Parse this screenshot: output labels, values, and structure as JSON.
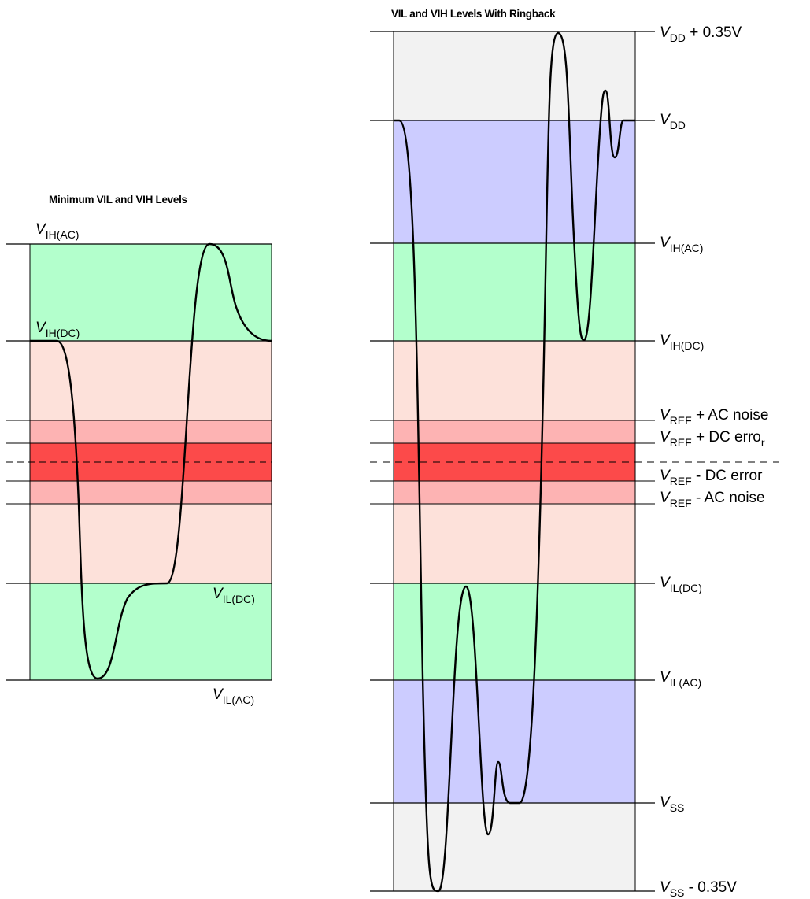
{
  "colors": {
    "green": "#b3ffcc",
    "pink": "#fde1da",
    "light_red": "#fdb3b3",
    "red": "#fc4a4a",
    "blue": "#ccccff",
    "gray": "#f2f2f2",
    "line": "#000000"
  },
  "left_panel": {
    "title": "Minimum VIL and VIH Levels",
    "labels": {
      "vih_ac": {
        "v": "V",
        "sub": "IH(AC)"
      },
      "vih_dc": {
        "v": "V",
        "sub": "IH(DC)"
      },
      "vil_dc": {
        "v": "V",
        "sub": "IL(DC)"
      },
      "vil_ac": {
        "v": "V",
        "sub": "IL(AC)"
      }
    }
  },
  "right_panel": {
    "title": "VIL and VIH Levels With Ringback",
    "labels": {
      "vdd_plus": {
        "v": "V",
        "sub": "DD",
        "rest": " + 0.35V"
      },
      "vdd": {
        "v": "V",
        "sub": "DD",
        "rest": ""
      },
      "vih_ac": {
        "v": "V",
        "sub": "IH(AC)",
        "rest": ""
      },
      "vih_dc": {
        "v": "V",
        "sub": "IH(DC)",
        "rest": ""
      },
      "vref_ac_plus": {
        "v": "V",
        "sub": "REF",
        "rest": " + AC noise"
      },
      "vref_dc_plus": {
        "v": "V",
        "sub": "REF",
        "rest": " + DC erro",
        "rest_sub": "r"
      },
      "vref_dc_minus": {
        "v": "V",
        "sub": "REF",
        "rest": " - DC error"
      },
      "vref_ac_minus": {
        "v": "V",
        "sub": "REF",
        "rest": " - AC noise"
      },
      "vil_dc": {
        "v": "V",
        "sub": "IL(DC)",
        "rest": ""
      },
      "vil_ac": {
        "v": "V",
        "sub": "IL(AC)",
        "rest": ""
      },
      "vss": {
        "v": "V",
        "sub": "SS",
        "rest": ""
      },
      "vss_minus": {
        "v": "V",
        "sub": "SS",
        "rest": " - 0.35V"
      }
    }
  }
}
